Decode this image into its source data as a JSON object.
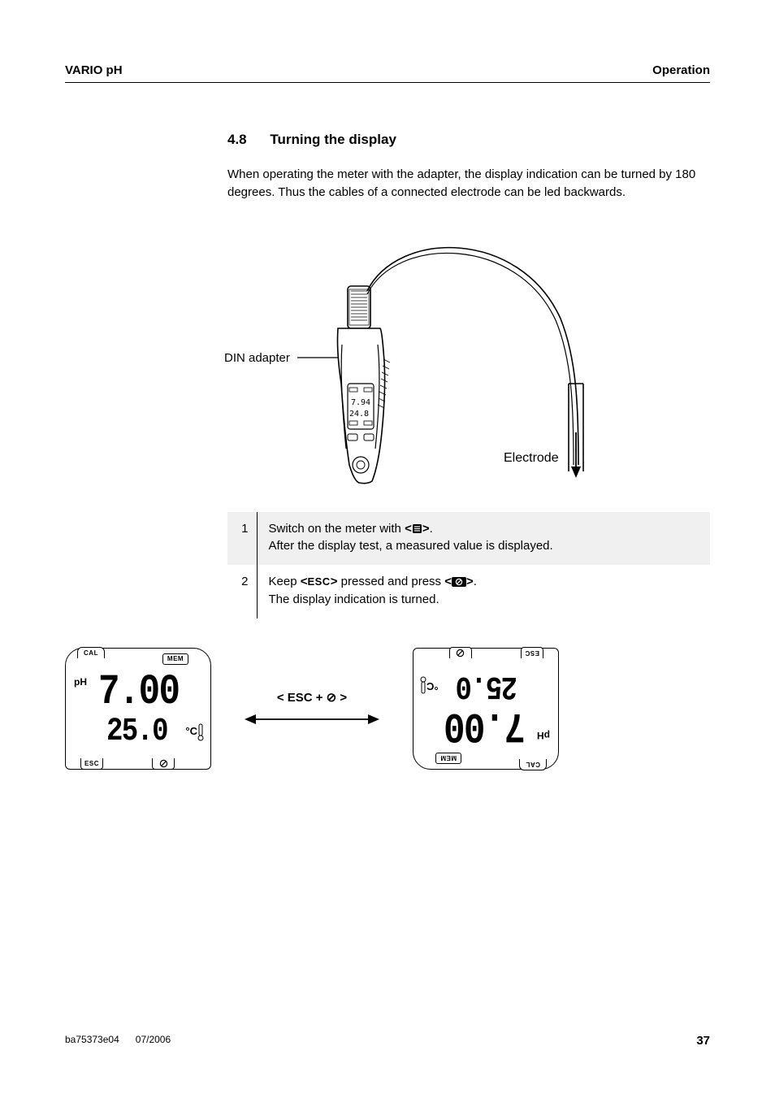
{
  "header": {
    "left": "VARIO pH",
    "right": "Operation"
  },
  "section": {
    "number": "4.8",
    "title": "Turning the display"
  },
  "intro": "When operating the meter with the adapter, the display indication can be turned by 180 degrees. Thus the cables of a connected electrode can be led backwards.",
  "figure1": {
    "din_label": "DIN adapter",
    "electrode_label": "Electrode"
  },
  "steps": [
    {
      "num": "1",
      "highlight": true,
      "parts": [
        {
          "t": "text",
          "v": "Switch on the meter with "
        },
        {
          "t": "bold",
          "v": "<"
        },
        {
          "t": "icon",
          "v": "menu"
        },
        {
          "t": "bold",
          "v": ">"
        },
        {
          "t": "text",
          "v": "."
        }
      ],
      "line2": "After the display test, a measured value is displayed."
    },
    {
      "num": "2",
      "highlight": false,
      "parts": [
        {
          "t": "text",
          "v": "Keep "
        },
        {
          "t": "bold",
          "v": "<"
        },
        {
          "t": "sc",
          "v": "ESC"
        },
        {
          "t": "bold",
          "v": ">"
        },
        {
          "t": "text",
          "v": " pressed and press "
        },
        {
          "t": "bold",
          "v": "<"
        },
        {
          "t": "icon",
          "v": "nocircle"
        },
        {
          "t": "bold",
          "v": ">"
        },
        {
          "t": "text",
          "v": "."
        }
      ],
      "line2": "The display indication is turned."
    }
  ],
  "arrow_label": "< ESC + ⊘ >",
  "lcd": {
    "cal": "CAL",
    "mem": "MEM",
    "esc": "ESC",
    "ph": "pH",
    "main": "7.00",
    "sub": "25.0",
    "unit": "°C"
  },
  "footer": {
    "doc": "ba75373e04",
    "date": "07/2006",
    "page": "37"
  },
  "colors": {
    "text": "#000000",
    "bg": "#ffffff",
    "highlight": "#f0f0f0"
  }
}
